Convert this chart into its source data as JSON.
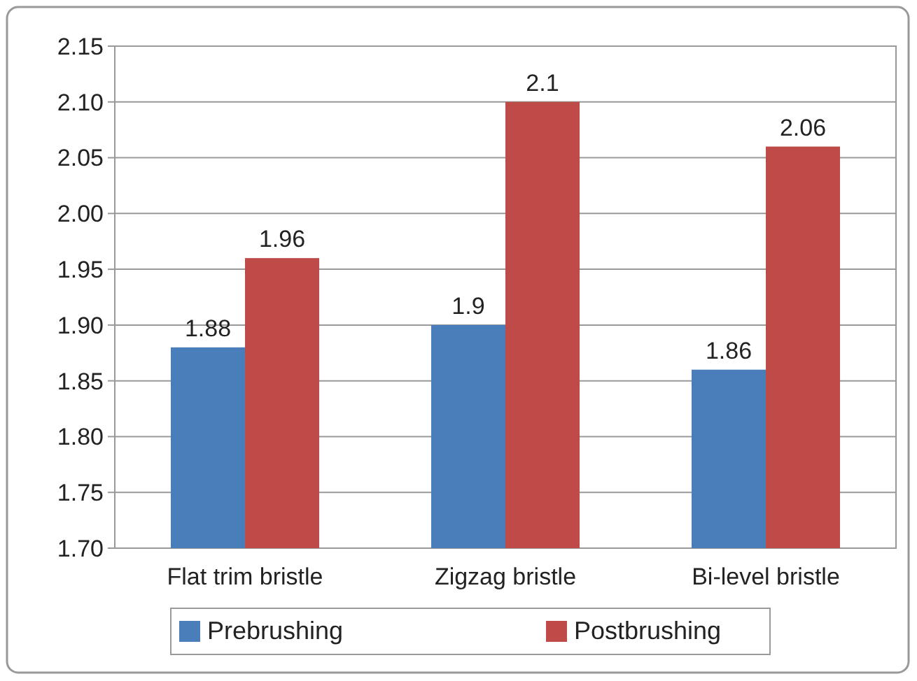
{
  "chart_data": {
    "type": "bar",
    "categories": [
      "Flat trim bristle",
      "Zigzag bristle",
      "Bi-level bristle"
    ],
    "series": [
      {
        "name": "Prebrushing",
        "color": "#4a7ebb",
        "values": [
          1.88,
          1.9,
          1.86
        ]
      },
      {
        "name": "Postbrushing",
        "color": "#be4b48",
        "values": [
          1.96,
          2.1,
          2.06
        ]
      }
    ],
    "ylim": [
      1.7,
      2.15
    ],
    "yticks": [
      {
        "value": 1.7,
        "label": "1.70"
      },
      1.75,
      {
        "value": 1.8,
        "label": "1.80"
      },
      1.85,
      {
        "value": 1.9,
        "label": "1.90"
      },
      1.95,
      {
        "value": 2,
        "label": "2.00"
      },
      2.05,
      {
        "value": 2.1,
        "label": "2.10"
      },
      2.15
    ],
    "grid": "y",
    "data_labels": true,
    "legend": "bottom"
  }
}
